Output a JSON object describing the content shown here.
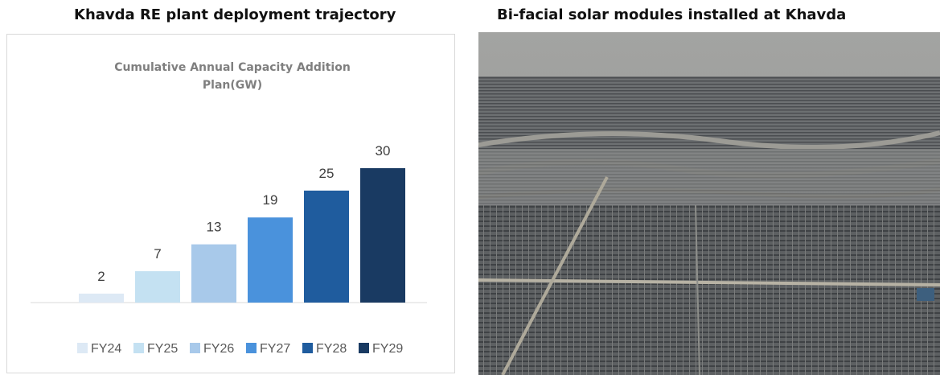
{
  "captions": [
    "Khavda RE plant deployment trajectory",
    "Bi-facial solar modules installed at Khavda"
  ],
  "chart_data": {
    "type": "bar",
    "title": "Cumulative Annual Capacity Addition Plan(GW)",
    "categories": [
      "FY24",
      "FY25",
      "FY26",
      "FY27",
      "FY28",
      "FY29"
    ],
    "values": [
      2,
      7,
      13,
      19,
      25,
      30
    ],
    "colors": [
      "#dde9f5",
      "#c4e1f2",
      "#a8c9ea",
      "#4a92dc",
      "#1f5c9e",
      "#193a62"
    ],
    "legend": "bottom"
  }
}
